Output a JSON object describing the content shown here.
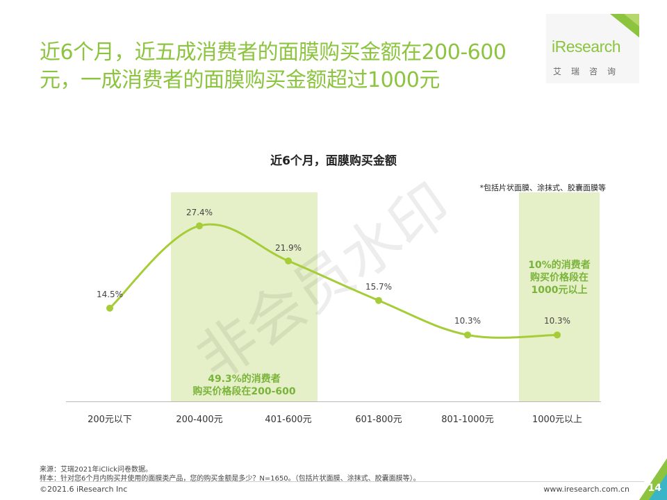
{
  "headline": {
    "line1": "近6个月，近五成消费者的面膜购买金额在200-600",
    "line2": "元，一成消费者的面膜购买金额超过1000元"
  },
  "logo": {
    "name": "iResearch",
    "sub": "艾瑞咨询"
  },
  "chart_data": {
    "type": "line",
    "title": "近6个月，面膜购买金额",
    "note": "*包括片状面膜、涂抹式、胶囊面膜等",
    "categories": [
      "200元以下",
      "200-400元",
      "401-600元",
      "601-800元",
      "801-1000元",
      "1000元以上"
    ],
    "values": [
      14.5,
      27.4,
      21.9,
      15.7,
      10.3,
      10.3
    ],
    "value_labels": [
      "14.5%",
      "27.4%",
      "21.9%",
      "15.7%",
      "10.3%",
      "10.3%"
    ],
    "highlights": [
      {
        "categories": [
          "200-400元",
          "401-600元"
        ],
        "text_line1": "49.3%的消费者",
        "text_line2": "购买价格段在200-600"
      },
      {
        "categories": [
          "1000元以上"
        ],
        "text_line1": "10%的消费者",
        "text_line2": "购买价格段在",
        "text_line3": "1000元以上"
      }
    ],
    "line_color": "#a6cc38",
    "highlight_color": "#e5f0c8",
    "grid": false,
    "legend": "none"
  },
  "watermark": "非会员水印",
  "footer": {
    "source": "来源：艾瑞2021年iClick问卷数据。",
    "sample": "样本：针对您6个月内购买并使用的面膜类产品，您的购买金额是多少？N=1650。（包括片状面膜、涂抹式、胶囊面膜等）。",
    "copyright": "©2021.6 iResearch Inc",
    "site": "www.iresearch.com.cn",
    "page": "14"
  },
  "colors": {
    "accent": "#8cc43f",
    "text": "#333333"
  }
}
